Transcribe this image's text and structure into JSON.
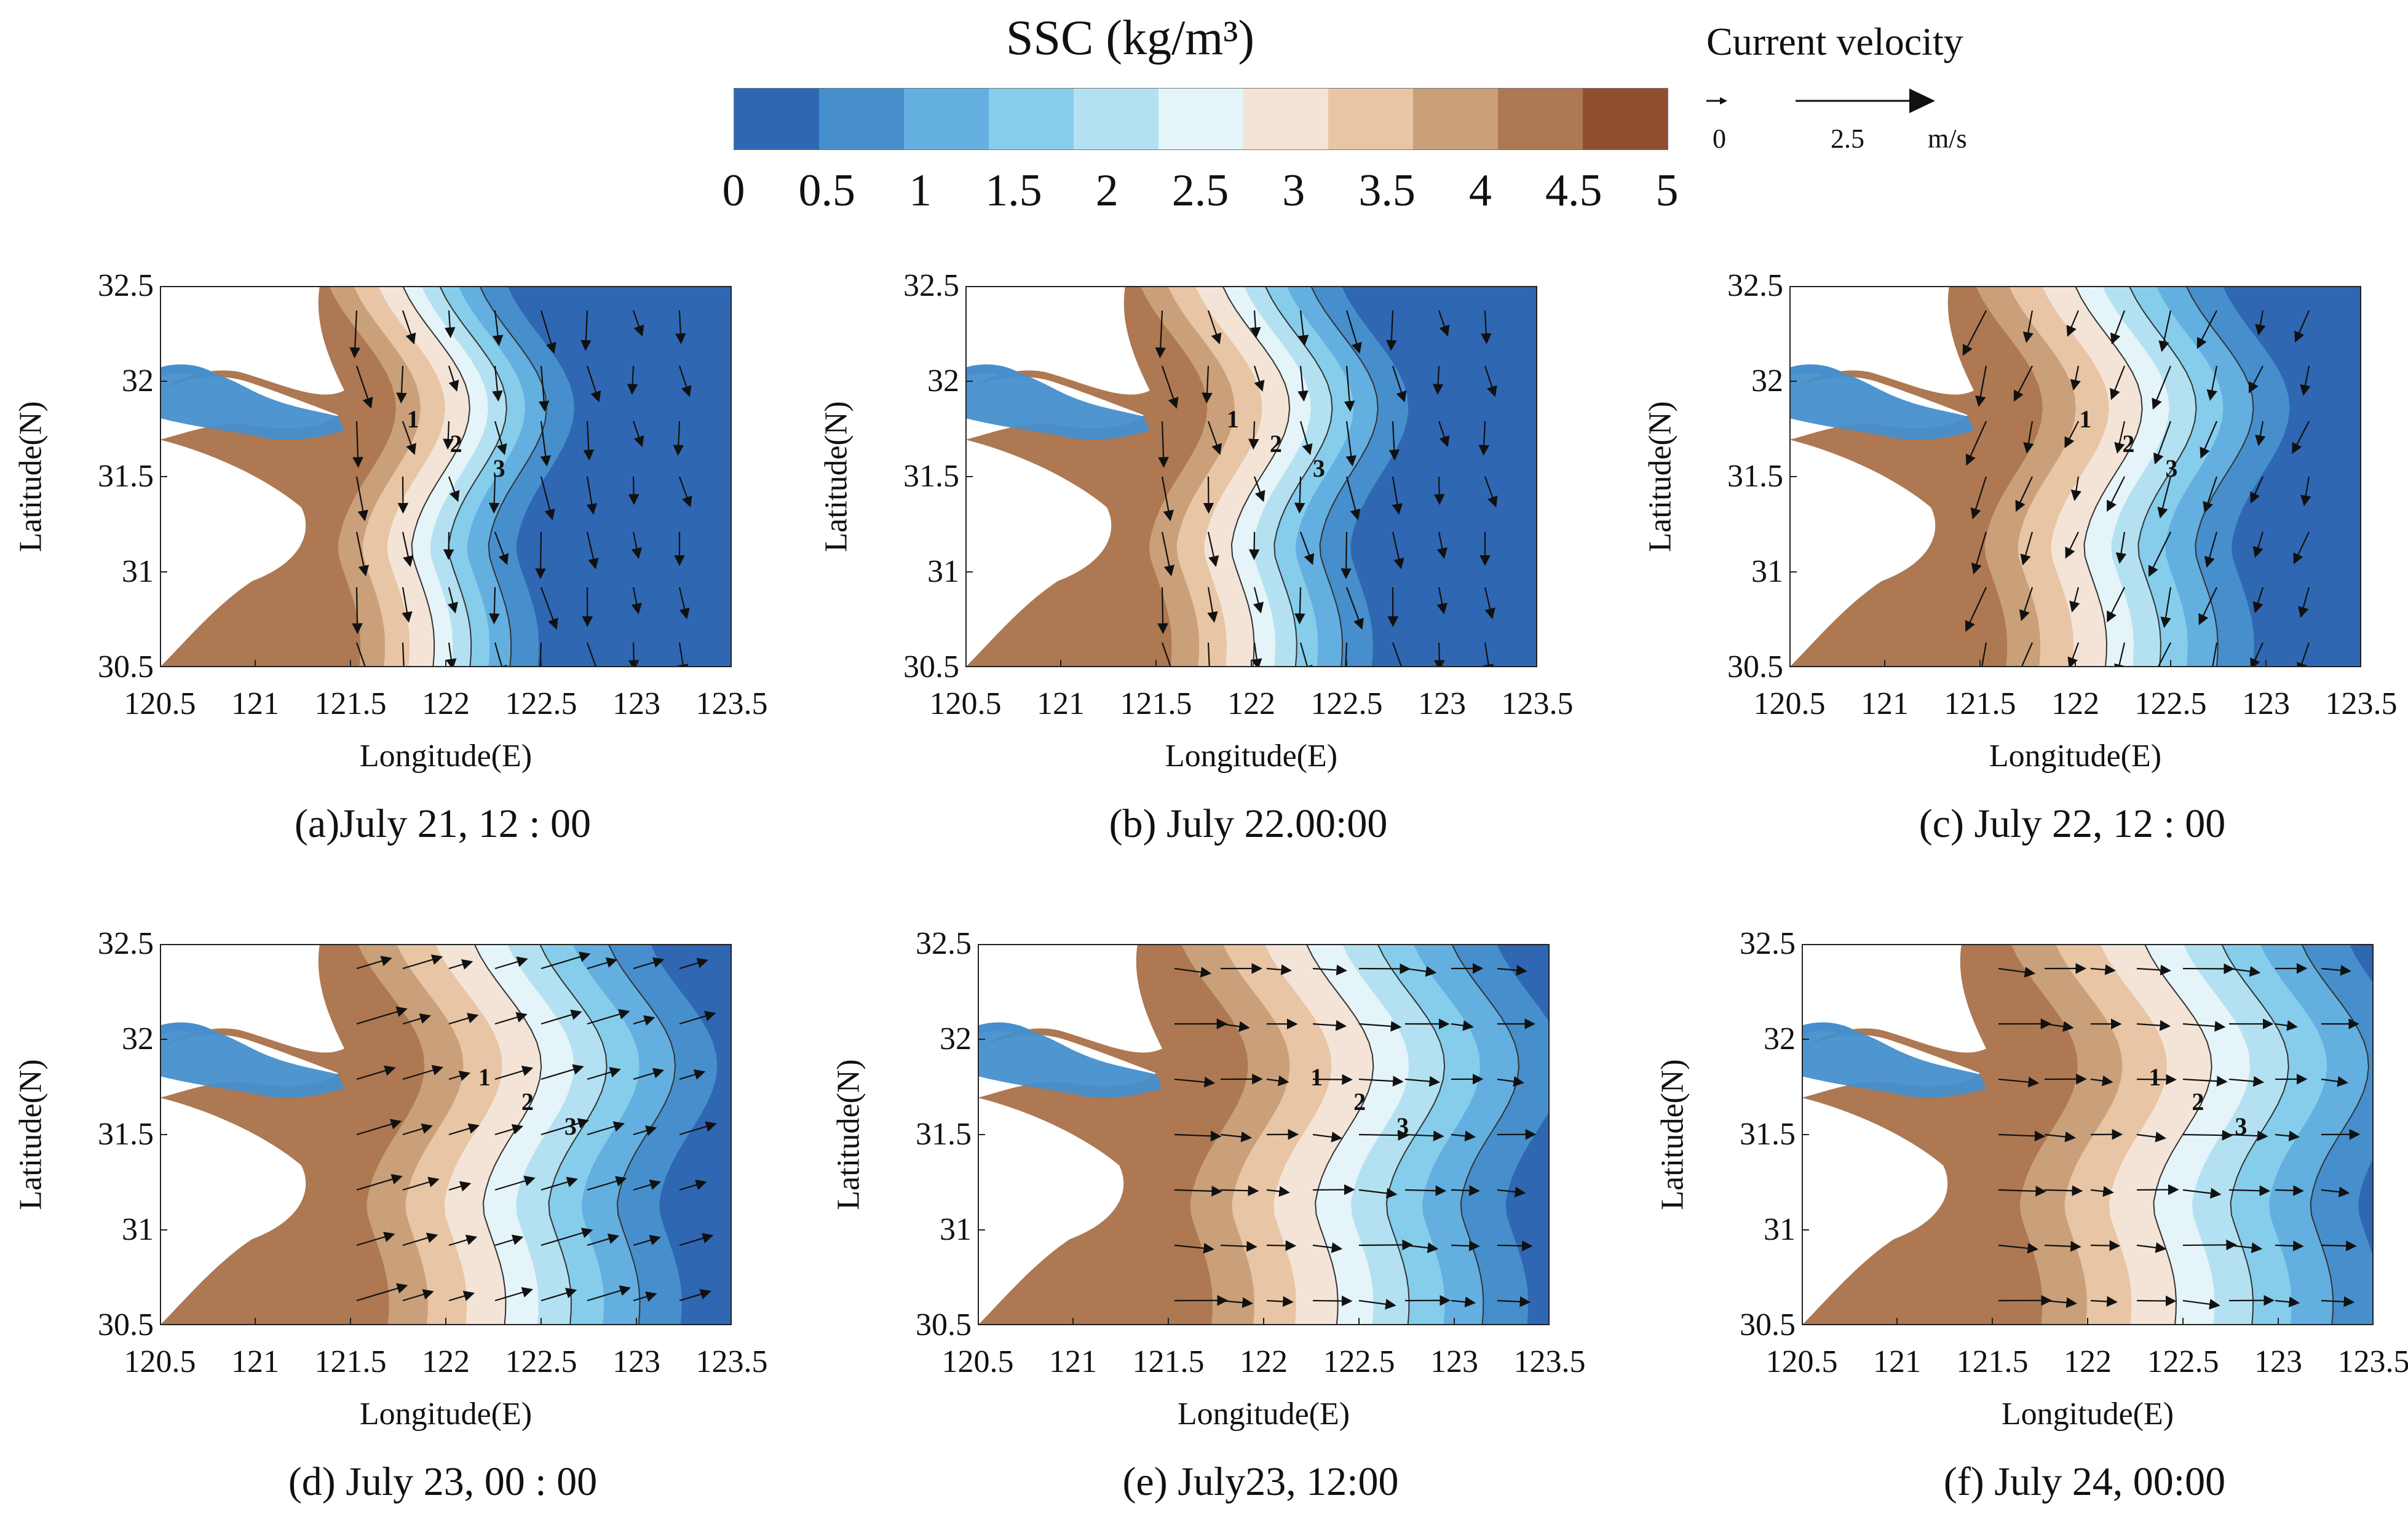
{
  "legend": {
    "title": "SSC (kg/m³)",
    "colors": [
      "#2f67b3",
      "#468fcc",
      "#63afe0",
      "#86cdec",
      "#b4e1f1",
      "#e5f4f8",
      "#f3e4d7",
      "#e8c5a4",
      "#c9a07a",
      "#ad7852",
      "#8f4f30"
    ],
    "ticks": [
      "0",
      "0.5",
      "1",
      "1.5",
      "2",
      "2.5",
      "3",
      "3.5",
      "4",
      "4.5",
      "5"
    ]
  },
  "velocity_key": {
    "title": "Current velocity",
    "small_label": "0",
    "large_label": "2.5",
    "unit": "m/s"
  },
  "axes": {
    "ylabel": "Latitude(N)",
    "xlabel": "Longitude(E)",
    "yticks": [
      "32.5",
      "32",
      "31.5",
      "31",
      "30.5"
    ],
    "xticks": [
      "120.5",
      "121",
      "121.5",
      "122",
      "122.5",
      "123",
      "123.5"
    ],
    "contour_labels": [
      "1",
      "2",
      "3"
    ]
  },
  "panels": [
    {
      "id": "a",
      "caption": "(a)July 21, 12 : 00",
      "shift": 0.0,
      "dir": "s"
    },
    {
      "id": "b",
      "caption": "(b) July 22.00:00",
      "shift": 0.05,
      "dir": "s"
    },
    {
      "id": "c",
      "caption": "(c) July 22, 12 : 00",
      "shift": 0.15,
      "dir": "sw"
    },
    {
      "id": "d",
      "caption": "(d) July 23, 00 : 00",
      "shift": 0.25,
      "dir": "ne"
    },
    {
      "id": "e",
      "caption": "(e) July23, 12:00",
      "shift": 0.3,
      "dir": "e"
    },
    {
      "id": "f",
      "caption": "(f) July 24, 00:00",
      "shift": 0.35,
      "dir": "e"
    }
  ]
}
